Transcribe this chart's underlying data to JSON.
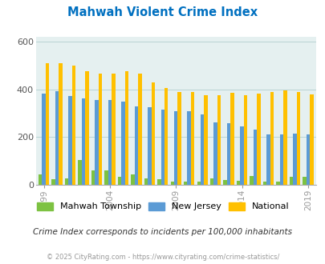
{
  "title": "Mahwah Violent Crime Index",
  "years": [
    1999,
    2000,
    2001,
    2002,
    2003,
    2004,
    2005,
    2006,
    2007,
    2008,
    2009,
    2010,
    2011,
    2012,
    2013,
    2014,
    2015,
    2016,
    2017,
    2018,
    2019
  ],
  "mahwah": [
    45,
    25,
    28,
    105,
    62,
    62,
    35,
    45,
    28,
    22,
    12,
    14,
    14,
    28,
    20,
    18,
    38,
    14,
    14,
    35,
    32
  ],
  "nj": [
    382,
    394,
    373,
    362,
    357,
    355,
    348,
    328,
    327,
    315,
    310,
    310,
    295,
    263,
    257,
    244,
    230,
    210,
    210,
    215,
    210
  ],
  "national": [
    510,
    510,
    500,
    475,
    465,
    465,
    475,
    465,
    430,
    405,
    390,
    390,
    375,
    375,
    385,
    375,
    383,
    390,
    395,
    390,
    380
  ],
  "bar_width": 0.27,
  "ylim": [
    0,
    620
  ],
  "yticks": [
    0,
    200,
    400,
    600
  ],
  "bg_color": "#e5f0f0",
  "color_mahwah": "#7dc242",
  "color_nj": "#5b9bd5",
  "color_national": "#ffc000",
  "title_color": "#0070c0",
  "subtitle": "Crime Index corresponds to incidents per 100,000 inhabitants",
  "footer": "© 2025 CityRating.com - https://www.cityrating.com/crime-statistics/",
  "tick_years": [
    1999,
    2004,
    2009,
    2014,
    2019
  ],
  "grid_color": "#b8d4d4"
}
